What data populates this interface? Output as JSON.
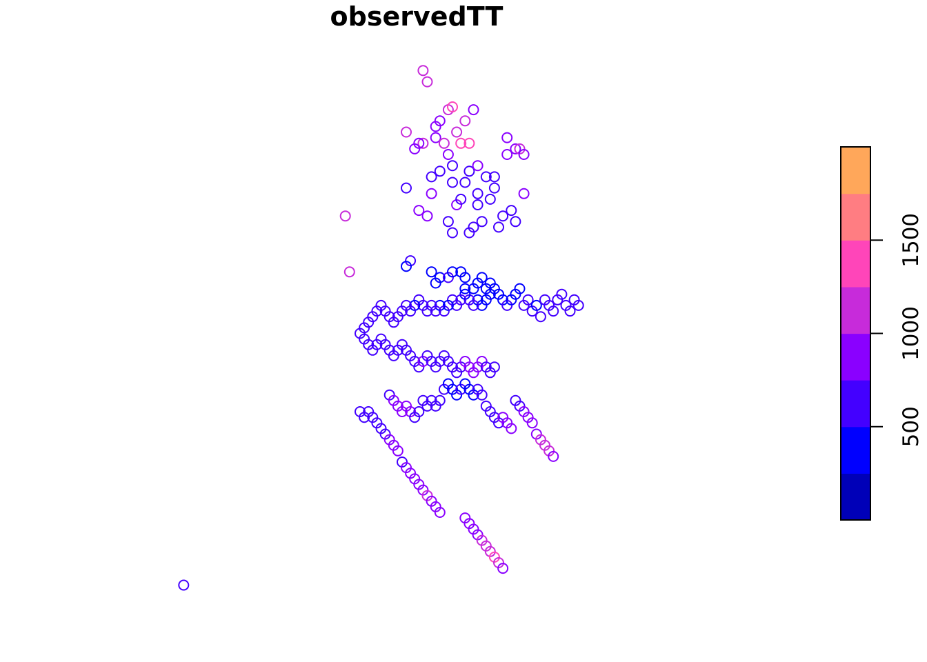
{
  "chart_data": {
    "type": "scatter",
    "title": "observedTT",
    "marker": "open-circle",
    "axes_drawn": false,
    "grid": false,
    "legend": {
      "kind": "colorbar",
      "placement": "right",
      "range": [
        0,
        2000
      ],
      "breaks": [
        0,
        250,
        500,
        750,
        1000,
        1250,
        1500,
        1750,
        2000
      ],
      "colors": [
        "#0000B8",
        "#0000FF",
        "#4300FF",
        "#8A00FF",
        "#C72BDA",
        "#FF45B9",
        "#FF7D82",
        "#FFA75A",
        "#FFD036",
        "#FFFF00"
      ],
      "tick_values": [
        500,
        1000,
        1500
      ],
      "tick_labels": [
        "500",
        "1000",
        "1500"
      ]
    },
    "x_range": [
      0,
      100
    ],
    "y_range": [
      0,
      100
    ],
    "points": [
      [
        3,
        5,
        560
      ],
      [
        41.5,
        71,
        1050
      ],
      [
        42.5,
        61,
        1000
      ],
      [
        60,
        97,
        1100
      ],
      [
        61,
        95,
        1150
      ],
      [
        66,
        90,
        1200
      ],
      [
        67,
        90.5,
        1300
      ],
      [
        64,
        88,
        800
      ],
      [
        63,
        87,
        850
      ],
      [
        72,
        90,
        800
      ],
      [
        68,
        86,
        1000
      ],
      [
        70,
        88,
        1050
      ],
      [
        69,
        84,
        1350
      ],
      [
        63,
        85,
        900
      ],
      [
        65,
        84,
        1100
      ],
      [
        71,
        84,
        1300
      ],
      [
        66,
        82,
        900
      ],
      [
        60,
        84,
        1000
      ],
      [
        56,
        86,
        1050
      ],
      [
        64,
        79,
        600
      ],
      [
        67,
        80,
        500
      ],
      [
        71,
        79,
        700
      ],
      [
        73,
        80,
        900
      ],
      [
        75,
        78,
        600
      ],
      [
        77,
        78,
        700
      ],
      [
        80,
        82,
        800
      ],
      [
        82,
        83,
        900
      ],
      [
        83,
        83,
        1000
      ],
      [
        84,
        82,
        850
      ],
      [
        80,
        85,
        900
      ],
      [
        58,
        83,
        950
      ],
      [
        59,
        84,
        950
      ],
      [
        62,
        78,
        700
      ],
      [
        67,
        77,
        650
      ],
      [
        70,
        77,
        700
      ],
      [
        73,
        75,
        600
      ],
      [
        76,
        74,
        700
      ],
      [
        77,
        76,
        650
      ],
      [
        73,
        73,
        700
      ],
      [
        79,
        71,
        500
      ],
      [
        81,
        72,
        500
      ],
      [
        82,
        70,
        600
      ],
      [
        84,
        75,
        900
      ],
      [
        78,
        69,
        600
      ],
      [
        71,
        68,
        500
      ],
      [
        72,
        69,
        600
      ],
      [
        66,
        70,
        500
      ],
      [
        67,
        68,
        500
      ],
      [
        74,
        70,
        550
      ],
      [
        61,
        71,
        900
      ],
      [
        59,
        72,
        950
      ],
      [
        56,
        76,
        600
      ],
      [
        62,
        75,
        800
      ],
      [
        68,
        73,
        750
      ],
      [
        69,
        74,
        700
      ],
      [
        57,
        63,
        500
      ],
      [
        56,
        62,
        400
      ],
      [
        62,
        61,
        420
      ],
      [
        64,
        60,
        400
      ],
      [
        63,
        59,
        450
      ],
      [
        66,
        60,
        500
      ],
      [
        67,
        61,
        350
      ],
      [
        69,
        61,
        300
      ],
      [
        70,
        60,
        350
      ],
      [
        70,
        58,
        300
      ],
      [
        72,
        58,
        300
      ],
      [
        73,
        59,
        350
      ],
      [
        74,
        60,
        400
      ],
      [
        75,
        58,
        350
      ],
      [
        76,
        59,
        400
      ],
      [
        76,
        57,
        300
      ],
      [
        77,
        58,
        350
      ],
      [
        78,
        57,
        400
      ],
      [
        79,
        56,
        450
      ],
      [
        80,
        55,
        500
      ],
      [
        81,
        56,
        400
      ],
      [
        82,
        57,
        350
      ],
      [
        83,
        58,
        450
      ],
      [
        84,
        55,
        500
      ],
      [
        85,
        56,
        550
      ],
      [
        86,
        54,
        600
      ],
      [
        87,
        55,
        450
      ],
      [
        88,
        53,
        500
      ],
      [
        89,
        56,
        650
      ],
      [
        90,
        55,
        700
      ],
      [
        91,
        54,
        650
      ],
      [
        92,
        56,
        700
      ],
      [
        93,
        57,
        600
      ],
      [
        94,
        55,
        550
      ],
      [
        95,
        54,
        600
      ],
      [
        96,
        56,
        650
      ],
      [
        97,
        55,
        700
      ],
      [
        75,
        56,
        350
      ],
      [
        74,
        55,
        400
      ],
      [
        73,
        56,
        450
      ],
      [
        72,
        55,
        500
      ],
      [
        71,
        56,
        550
      ],
      [
        70,
        57,
        450
      ],
      [
        69,
        56,
        500
      ],
      [
        68,
        55,
        550
      ],
      [
        67,
        56,
        500
      ],
      [
        66,
        55,
        450
      ],
      [
        65,
        54,
        500
      ],
      [
        64,
        55,
        450
      ],
      [
        63,
        54,
        500
      ],
      [
        62,
        55,
        550
      ],
      [
        61,
        54,
        600
      ],
      [
        60,
        55,
        550
      ],
      [
        59,
        56,
        500
      ],
      [
        58,
        55,
        450
      ],
      [
        57,
        54,
        500
      ],
      [
        56,
        55,
        550
      ],
      [
        55,
        54,
        600
      ],
      [
        54,
        53,
        650
      ],
      [
        53,
        52,
        700
      ],
      [
        52,
        53,
        650
      ],
      [
        51,
        54,
        600
      ],
      [
        50,
        55,
        550
      ],
      [
        49,
        54,
        500
      ],
      [
        48,
        53,
        550
      ],
      [
        47,
        52,
        600
      ],
      [
        46,
        51,
        650
      ],
      [
        45,
        50,
        700
      ],
      [
        46,
        49,
        650
      ],
      [
        47,
        48,
        600
      ],
      [
        48,
        47,
        550
      ],
      [
        49,
        48,
        500
      ],
      [
        50,
        49,
        550
      ],
      [
        51,
        48,
        600
      ],
      [
        52,
        47,
        650
      ],
      [
        53,
        46,
        600
      ],
      [
        54,
        47,
        550
      ],
      [
        55,
        48,
        500
      ],
      [
        56,
        47,
        550
      ],
      [
        57,
        46,
        600
      ],
      [
        58,
        45,
        650
      ],
      [
        59,
        44,
        700
      ],
      [
        60,
        45,
        750
      ],
      [
        61,
        46,
        700
      ],
      [
        62,
        45,
        650
      ],
      [
        63,
        44,
        600
      ],
      [
        64,
        45,
        550
      ],
      [
        65,
        46,
        500
      ],
      [
        66,
        45,
        550
      ],
      [
        67,
        44,
        600
      ],
      [
        68,
        43,
        650
      ],
      [
        69,
        44,
        700
      ],
      [
        70,
        45,
        750
      ],
      [
        71,
        44,
        800
      ],
      [
        72,
        43,
        850
      ],
      [
        73,
        44,
        800
      ],
      [
        74,
        45,
        750
      ],
      [
        75,
        44,
        700
      ],
      [
        76,
        43,
        650
      ],
      [
        77,
        44,
        600
      ],
      [
        65,
        40,
        500
      ],
      [
        66,
        41,
        400
      ],
      [
        67,
        40,
        450
      ],
      [
        68,
        39,
        400
      ],
      [
        69,
        40,
        500
      ],
      [
        70,
        41,
        450
      ],
      [
        71,
        40,
        400
      ],
      [
        72,
        39,
        450
      ],
      [
        73,
        40,
        500
      ],
      [
        74,
        39,
        550
      ],
      [
        60,
        38,
        500
      ],
      [
        61,
        37,
        550
      ],
      [
        62,
        38,
        600
      ],
      [
        63,
        37,
        650
      ],
      [
        64,
        38,
        700
      ],
      [
        52,
        39,
        700
      ],
      [
        53,
        38,
        750
      ],
      [
        54,
        37,
        800
      ],
      [
        55,
        36,
        850
      ],
      [
        56,
        37,
        900
      ],
      [
        57,
        36,
        750
      ],
      [
        58,
        35,
        700
      ],
      [
        59,
        36,
        650
      ],
      [
        75,
        37,
        600
      ],
      [
        76,
        36,
        550
      ],
      [
        77,
        35,
        650
      ],
      [
        78,
        34,
        700
      ],
      [
        79,
        35,
        750
      ],
      [
        80,
        34,
        800
      ],
      [
        81,
        33,
        850
      ],
      [
        45,
        36,
        550
      ],
      [
        46,
        35,
        500
      ],
      [
        47,
        36,
        600
      ],
      [
        48,
        35,
        650
      ],
      [
        49,
        34,
        700
      ],
      [
        82,
        38,
        650
      ],
      [
        83,
        37,
        700
      ],
      [
        84,
        36,
        750
      ],
      [
        85,
        35,
        800
      ],
      [
        86,
        34,
        850
      ],
      [
        50,
        33,
        650
      ],
      [
        51,
        32,
        700
      ],
      [
        52,
        31,
        750
      ],
      [
        53,
        30,
        800
      ],
      [
        54,
        29,
        850
      ],
      [
        87,
        32,
        950
      ],
      [
        88,
        31,
        1000
      ],
      [
        89,
        30,
        1050
      ],
      [
        90,
        29,
        1000
      ],
      [
        91,
        28,
        950
      ],
      [
        55,
        27,
        700
      ],
      [
        56,
        26,
        750
      ],
      [
        57,
        25,
        800
      ],
      [
        58,
        24,
        850
      ],
      [
        59,
        23,
        900
      ],
      [
        60,
        22,
        950
      ],
      [
        61,
        21,
        1000
      ],
      [
        62,
        20,
        850
      ],
      [
        63,
        19,
        800
      ],
      [
        64,
        18,
        750
      ],
      [
        70,
        17,
        800
      ],
      [
        71,
        16,
        850
      ],
      [
        72,
        15,
        900
      ],
      [
        73,
        14,
        950
      ],
      [
        74,
        13,
        1000
      ],
      [
        75,
        12,
        1100
      ],
      [
        76,
        11,
        1200
      ],
      [
        77,
        10,
        1300
      ],
      [
        78,
        9,
        1100
      ],
      [
        79,
        8,
        900
      ]
    ]
  }
}
